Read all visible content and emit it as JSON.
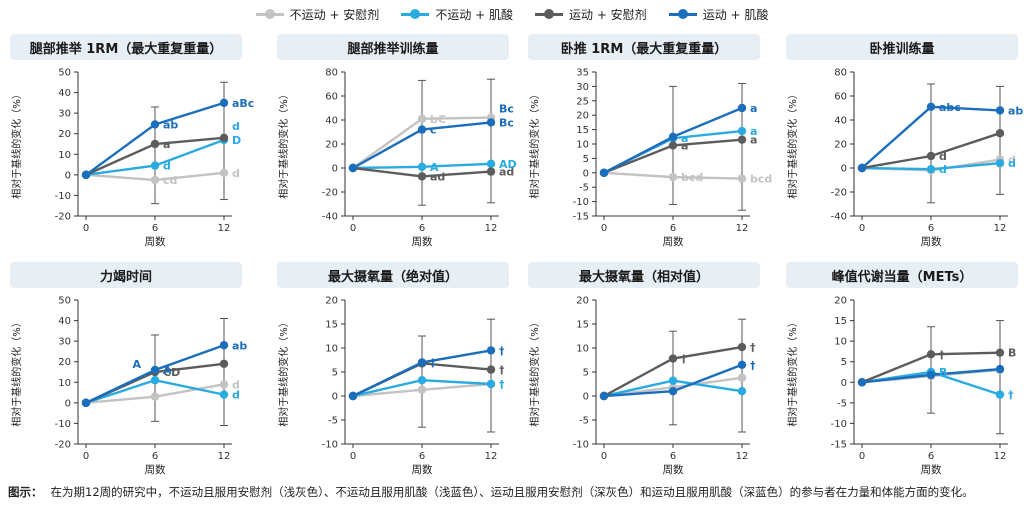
{
  "legend": [
    {
      "name": "不运动 + 安慰剂",
      "color": "#c3c3c3"
    },
    {
      "name": "不运动 + 肌酸",
      "color": "#29aae1"
    },
    {
      "name": "运动 + 安慰剂",
      "color": "#5c5c5c"
    },
    {
      "name": "运动 + 肌酸",
      "color": "#1b6ebc"
    }
  ],
  "caption": {
    "label": "图示：",
    "text": "在为期12周的研究中，不运动且服用安慰剂（浅灰色）、不运动且服用肌酸（浅蓝色）、运动且服用安慰剂（深灰色）和运动且服用肌酸（深蓝色）的参与者在力量和体能方面的变化。"
  },
  "chart_data": [
    {
      "type": "line",
      "title": "腿部推举 1RM（最大重复重量）",
      "xlabel": "周数",
      "ylabel": "相对于基线的变化（%）",
      "x": [
        0,
        6,
        12
      ],
      "ylim": [
        -20,
        50
      ],
      "yticks": [
        -20,
        -10,
        0,
        10,
        20,
        30,
        40,
        50
      ],
      "series": [
        {
          "values": [
            0,
            -2.5,
            1
          ],
          "labels": [
            "",
            "cd",
            "d"
          ]
        },
        {
          "values": [
            0,
            4.5,
            17
          ],
          "labels": [
            "",
            "d",
            "D"
          ]
        },
        {
          "values": [
            0,
            15,
            18
          ],
          "labels": [
            "",
            "a",
            ""
          ]
        },
        {
          "values": [
            0,
            24.5,
            35
          ],
          "labels": [
            "",
            "ab",
            "aBc"
          ]
        }
      ],
      "extra_labels": [
        {
          "series": 1,
          "x": 12,
          "text": "d"
        }
      ],
      "error_bars": [
        {
          "x": 6,
          "low": -14,
          "high": 33
        },
        {
          "x": 12,
          "low": -12,
          "high": 45
        }
      ]
    },
    {
      "type": "line",
      "title": "腿部推举训练量",
      "xlabel": "周数",
      "ylabel": "相对于基线的变化（%）",
      "x": [
        0,
        6,
        12
      ],
      "ylim": [
        -40,
        80
      ],
      "yticks": [
        -40,
        -20,
        0,
        20,
        40,
        60,
        80
      ],
      "series": [
        {
          "values": [
            0,
            41,
            42
          ],
          "labels": [
            "",
            "bC",
            ""
          ]
        },
        {
          "values": [
            0,
            1,
            3.5
          ],
          "labels": [
            "",
            "A",
            "AD"
          ]
        },
        {
          "values": [
            0,
            -7,
            -3
          ],
          "labels": [
            "",
            "ad",
            "ad"
          ]
        },
        {
          "values": [
            0,
            32,
            38
          ],
          "labels": [
            "",
            "c",
            "Bc"
          ]
        }
      ],
      "extra_labels": [
        {
          "series": 3,
          "x": 12,
          "text": "Bc"
        }
      ],
      "error_bars": [
        {
          "x": 6,
          "low": -31,
          "high": 73
        },
        {
          "x": 12,
          "low": -29,
          "high": 74
        }
      ]
    },
    {
      "type": "line",
      "title": "卧推 1RM（最大重复重量）",
      "xlabel": "周数",
      "ylabel": "相对于基线的变化（%）",
      "x": [
        0,
        6,
        12
      ],
      "ylim": [
        -15,
        35
      ],
      "yticks": [
        -15,
        -10,
        -5,
        0,
        5,
        10,
        15,
        20,
        25,
        30,
        35
      ],
      "series": [
        {
          "values": [
            0,
            -1.5,
            -2
          ],
          "labels": [
            "",
            "bcd",
            "bcd"
          ]
        },
        {
          "values": [
            0,
            12,
            14.5
          ],
          "labels": [
            "",
            "a",
            "a"
          ]
        },
        {
          "values": [
            0,
            9.5,
            11.5
          ],
          "labels": [
            "",
            "a",
            "a"
          ]
        },
        {
          "values": [
            0,
            12.5,
            22.5
          ],
          "labels": [
            "",
            "",
            "a"
          ]
        }
      ],
      "extra_labels": [],
      "error_bars": [
        {
          "x": 6,
          "low": -11,
          "high": 30
        },
        {
          "x": 12,
          "low": -13,
          "high": 31
        }
      ]
    },
    {
      "type": "line",
      "title": "卧推训练量",
      "xlabel": "周数",
      "ylabel": "相对于基线的变化（%）",
      "x": [
        0,
        6,
        12
      ],
      "ylim": [
        -40,
        80
      ],
      "yticks": [
        -40,
        -20,
        0,
        20,
        40,
        60,
        80
      ],
      "series": [
        {
          "values": [
            0,
            -2,
            7
          ],
          "labels": [
            "",
            "",
            "d"
          ]
        },
        {
          "values": [
            0,
            -1,
            4
          ],
          "labels": [
            "",
            "d",
            "d"
          ]
        },
        {
          "values": [
            0,
            10,
            29
          ],
          "labels": [
            "",
            "d",
            ""
          ]
        },
        {
          "values": [
            0,
            51,
            48
          ],
          "labels": [
            "",
            "abc",
            "ab"
          ]
        }
      ],
      "extra_labels": [],
      "error_bars": [
        {
          "x": 6,
          "low": -29,
          "high": 70
        },
        {
          "x": 12,
          "low": -22,
          "high": 68
        }
      ]
    },
    {
      "type": "line",
      "title": "力竭时间",
      "xlabel": "周数",
      "ylabel": "相对于基线的变化（%）",
      "x": [
        0,
        6,
        12
      ],
      "ylim": [
        -20,
        50
      ],
      "yticks": [
        -20,
        -10,
        0,
        10,
        20,
        30,
        40,
        50
      ],
      "series": [
        {
          "values": [
            0,
            3,
            9
          ],
          "labels": [
            "",
            "",
            "d"
          ]
        },
        {
          "values": [
            0,
            11,
            4
          ],
          "labels": [
            "",
            "",
            "d"
          ]
        },
        {
          "values": [
            0,
            15,
            19
          ],
          "labels": [
            "",
            "CD",
            ""
          ]
        },
        {
          "values": [
            0,
            16,
            28
          ],
          "labels": [
            "",
            "A",
            "ab"
          ]
        }
      ],
      "extra_labels": [
        {
          "series": 3,
          "x": 6,
          "text": "A",
          "side": "left"
        }
      ],
      "error_bars": [
        {
          "x": 6,
          "low": -9,
          "high": 33
        },
        {
          "x": 12,
          "low": -11,
          "high": 41
        }
      ]
    },
    {
      "type": "line",
      "title": "最大摄氧量（绝对值）",
      "xlabel": "周数",
      "ylabel": "相对于基线的变化（%）",
      "x": [
        0,
        6,
        12
      ],
      "ylim": [
        -10,
        20
      ],
      "yticks": [
        -10,
        -5,
        0,
        5,
        10,
        15,
        20
      ],
      "series": [
        {
          "values": [
            0,
            1.3,
            2.5
          ],
          "labels": [
            "",
            "",
            ""
          ]
        },
        {
          "values": [
            0,
            3.3,
            2.5
          ],
          "labels": [
            "",
            "",
            "†"
          ]
        },
        {
          "values": [
            0,
            6.8,
            5.5
          ],
          "labels": [
            "",
            "",
            "†"
          ]
        },
        {
          "values": [
            0,
            7,
            9.5
          ],
          "labels": [
            "",
            "†",
            "†"
          ]
        }
      ],
      "extra_labels": [],
      "error_bars": [
        {
          "x": 6,
          "low": -6.5,
          "high": 12.5
        },
        {
          "x": 12,
          "low": -7.5,
          "high": 16
        }
      ]
    },
    {
      "type": "line",
      "title": "最大摄氧量（相对值）",
      "xlabel": "周数",
      "ylabel": "相对于基线的变化（%）",
      "x": [
        0,
        6,
        12
      ],
      "ylim": [
        -10,
        20
      ],
      "yticks": [
        -10,
        -5,
        0,
        5,
        10,
        15,
        20
      ],
      "series": [
        {
          "values": [
            0,
            1.8,
            3.8
          ],
          "labels": [
            "",
            "",
            ""
          ]
        },
        {
          "values": [
            0,
            3.2,
            1
          ],
          "labels": [
            "",
            "",
            ""
          ]
        },
        {
          "values": [
            0,
            7.8,
            10.2
          ],
          "labels": [
            "",
            "†",
            "†"
          ]
        },
        {
          "values": [
            0,
            1,
            6.5
          ],
          "labels": [
            "",
            "",
            "†"
          ]
        }
      ],
      "extra_labels": [],
      "error_bars": [
        {
          "x": 6,
          "low": -6,
          "high": 13.5
        },
        {
          "x": 12,
          "low": -7.5,
          "high": 16
        }
      ]
    },
    {
      "type": "line",
      "title": "峰值代谢当量（METs）",
      "xlabel": "周数",
      "ylabel": "相对于基线的变化（%）",
      "x": [
        0,
        6,
        12
      ],
      "ylim": [
        -15,
        20
      ],
      "yticks": [
        -15,
        -10,
        -5,
        0,
        5,
        10,
        15,
        20
      ],
      "series": [
        {
          "values": [
            0,
            1.5,
            3
          ],
          "labels": [
            "",
            "",
            ""
          ]
        },
        {
          "values": [
            0,
            2.5,
            -3
          ],
          "labels": [
            "",
            "B",
            "†"
          ]
        },
        {
          "values": [
            0,
            6.8,
            7.2
          ],
          "labels": [
            "",
            "†",
            "B"
          ]
        },
        {
          "values": [
            0,
            1.8,
            3.2
          ],
          "labels": [
            "",
            "",
            ""
          ]
        }
      ],
      "extra_labels": [],
      "error_bars": [
        {
          "x": 6,
          "low": -7.5,
          "high": 13.5
        },
        {
          "x": 12,
          "low": -12.5,
          "high": 15
        }
      ]
    }
  ]
}
